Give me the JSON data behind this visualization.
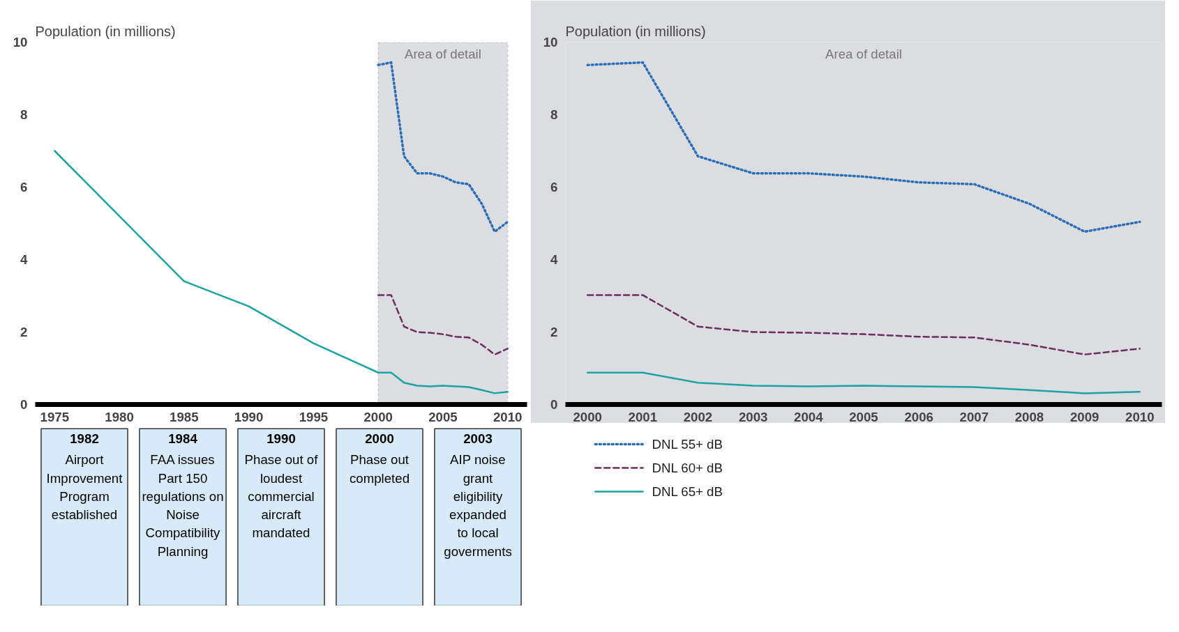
{
  "chart_data": [
    {
      "type": "line",
      "ylabel": "Population (in millions)",
      "xlim": [
        1973.5,
        2011.5
      ],
      "ylim": [
        0,
        10
      ],
      "xticks": [
        1975,
        1980,
        1985,
        1990,
        1995,
        2000,
        2005,
        2010
      ],
      "yticks": [
        0,
        2,
        4,
        6,
        8,
        10
      ],
      "grid": false,
      "bands": [
        {
          "axis": "x",
          "from": 2000,
          "to": 2010,
          "label": "Area of detail",
          "color": "#dcdde0"
        }
      ],
      "series": [
        {
          "color": "#2a6ebb",
          "line_style": "dotted",
          "x": [
            2000,
            2001,
            2002,
            2003,
            2004,
            2005,
            2006,
            2007,
            2008,
            2009,
            2010
          ],
          "values": [
            9.37,
            9.44,
            6.85,
            6.38,
            6.38,
            6.29,
            6.13,
            6.08,
            5.54,
            4.77,
            5.04
          ]
        },
        {
          "color": "#6b2d5c",
          "line_style": "dashed",
          "x": [
            2000,
            2001,
            2002,
            2003,
            2004,
            2005,
            2006,
            2007,
            2008,
            2009,
            2010
          ],
          "values": [
            3.02,
            3.02,
            2.15,
            2.0,
            1.98,
            1.94,
            1.87,
            1.85,
            1.65,
            1.38,
            1.54
          ]
        },
        {
          "color": "#1aa3a3",
          "line_style": "solid",
          "x": [
            1975,
            1985,
            1990,
            1995,
            2000,
            2001,
            2002,
            2003,
            2004,
            2005,
            2006,
            2007,
            2008,
            2009,
            2010
          ],
          "values": [
            7.0,
            3.4,
            2.71,
            1.69,
            0.88,
            0.88,
            0.6,
            0.52,
            0.5,
            0.52,
            0.5,
            0.48,
            0.4,
            0.31,
            0.35
          ]
        }
      ],
      "annotations": [
        "1982\nAirport\nImprovement\nProgram\nestablished",
        "1984\nFAA issues\nPart 150\nregulations on\nNoise\nCompatibility\nPlanning",
        "1990\nPhase out of\nloudest\ncommercial\naircraft\nmandated",
        "2000\nPhase out\ncompleted",
        "2003\nAIP noise\ngrant\neligibility\nexpanded\nto local\ngoverments"
      ]
    },
    {
      "type": "line",
      "ylabel": "Population (in millions)",
      "xlim": [
        1999.6,
        2010.4
      ],
      "ylim": [
        0,
        10
      ],
      "xticks": [
        2000,
        2001,
        2002,
        2003,
        2004,
        2005,
        2006,
        2007,
        2008,
        2009,
        2010
      ],
      "yticks": [
        0,
        2,
        4,
        6,
        8,
        10
      ],
      "grid": false,
      "legend": "bottom",
      "annotations": [
        "Area of detail"
      ],
      "series": [
        {
          "name": "DNL 55+ dB",
          "color": "#2a6ebb",
          "line_style": "dotted",
          "x": [
            2000,
            2001,
            2002,
            2003,
            2004,
            2005,
            2006,
            2007,
            2008,
            2009,
            2010
          ],
          "values": [
            9.37,
            9.44,
            6.85,
            6.38,
            6.38,
            6.29,
            6.13,
            6.08,
            5.54,
            4.77,
            5.04
          ]
        },
        {
          "name": "DNL 60+ dB",
          "color": "#6b2d5c",
          "line_style": "dashed",
          "x": [
            2000,
            2001,
            2002,
            2003,
            2004,
            2005,
            2006,
            2007,
            2008,
            2009,
            2010
          ],
          "values": [
            3.02,
            3.02,
            2.15,
            2.0,
            1.98,
            1.94,
            1.87,
            1.85,
            1.65,
            1.38,
            1.54
          ]
        },
        {
          "name": "DNL 65+ dB",
          "color": "#1aa3a3",
          "line_style": "solid",
          "x": [
            2000,
            2001,
            2002,
            2003,
            2004,
            2005,
            2006,
            2007,
            2008,
            2009,
            2010
          ],
          "values": [
            0.88,
            0.88,
            0.6,
            0.52,
            0.5,
            0.52,
            0.5,
            0.48,
            0.4,
            0.31,
            0.35
          ]
        }
      ]
    }
  ]
}
